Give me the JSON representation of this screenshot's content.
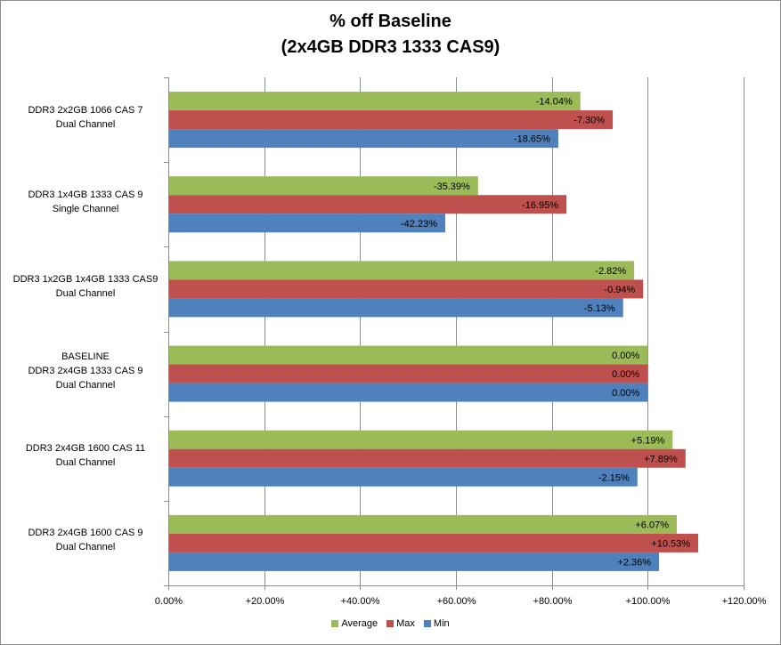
{
  "chart_data": {
    "type": "bar",
    "orientation": "horizontal",
    "title_lines": [
      "% off Baseline",
      "(2x4GB DDR3 1333 CAS9)"
    ],
    "categories": [
      [
        "DDR3 2x2GB 1066 CAS 7",
        "Dual Channel"
      ],
      [
        "DDR3 1x4GB 1333 CAS 9",
        "Single Channel"
      ],
      [
        "DDR3 1x2GB 1x4GB 1333 CAS9",
        "Dual Channel"
      ],
      [
        "BASELINE",
        "DDR3 2x4GB 1333 CAS 9",
        "Dual Channel"
      ],
      [
        "DDR3 2x4GB 1600 CAS 11",
        "Dual Channel"
      ],
      [
        "DDR3 2x4GB 1600 CAS 9",
        "Dual Channel"
      ]
    ],
    "series": [
      {
        "name": "Average",
        "color": "#9BBB59",
        "values": [
          85.96,
          64.61,
          97.18,
          100.0,
          105.19,
          106.07
        ],
        "labels": [
          "-14.04%",
          "-35.39%",
          "-2.82%",
          "0.00%",
          "+5.19%",
          "+6.07%"
        ]
      },
      {
        "name": "Max",
        "color": "#C0504D",
        "values": [
          92.7,
          83.05,
          99.06,
          100.0,
          107.89,
          110.53
        ],
        "labels": [
          "-7.30%",
          "-16.95%",
          "-0.94%",
          "0.00%",
          "+7.89%",
          "+10.53%"
        ]
      },
      {
        "name": "Min",
        "color": "#4F81BD",
        "values": [
          81.35,
          57.77,
          94.87,
          100.0,
          97.85,
          102.36
        ],
        "labels": [
          "-18.65%",
          "-42.23%",
          "-5.13%",
          "0.00%",
          "-2.15%",
          "+2.36%"
        ]
      }
    ],
    "xlim": [
      0,
      120
    ],
    "x_ticks": [
      0,
      20,
      40,
      60,
      80,
      100,
      120
    ],
    "x_tick_labels": [
      "0.00%",
      "+20.00%",
      "+40.00%",
      "+60.00%",
      "+80.00%",
      "+100.00%",
      "+120.00%"
    ],
    "grid": "vertical major",
    "legend_position": "bottom"
  }
}
